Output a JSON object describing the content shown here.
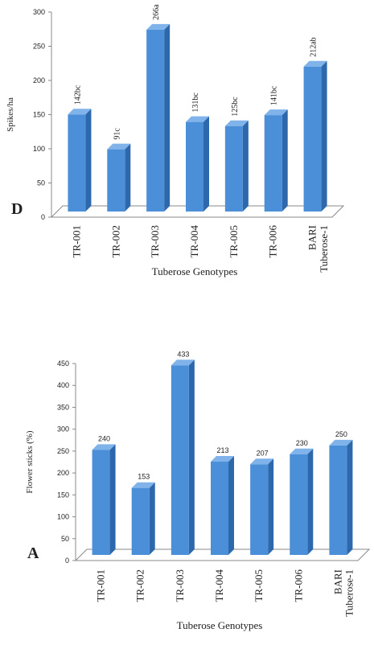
{
  "chart_data": [
    {
      "type": "bar",
      "panel_label": "D",
      "y_label": "Spikes/ha",
      "x_label": "Tuberose Genotypes",
      "categories": [
        "TR-001",
        "TR-002",
        "TR-003",
        "TR-004",
        "TR-005",
        "TR-006",
        "BARI Tuberose-1"
      ],
      "values": [
        142,
        91,
        266,
        131,
        125,
        141,
        212
      ],
      "value_labels": [
        "142bc",
        "91c",
        "266a",
        "131bc",
        "125bc",
        "141bc",
        "212ab"
      ],
      "color": "#4a8fd8",
      "ylim": [
        0,
        300
      ],
      "yticks": [
        0,
        50,
        100,
        150,
        200,
        250,
        300
      ]
    },
    {
      "type": "bar",
      "panel_label": "A",
      "y_label": "Flower sticks (%)",
      "x_label": "Tuberose Genotypes",
      "categories": [
        "TR-001",
        "TR-002",
        "TR-003",
        "TR-004",
        "TR-005",
        "TR-006",
        "BARI Tuberose-1"
      ],
      "values": [
        240,
        153,
        433,
        213,
        207,
        230,
        250
      ],
      "color": "#4a8fd8",
      "ylim": [
        0,
        450
      ],
      "yticks": [
        0,
        50,
        100,
        150,
        200,
        250,
        300,
        350,
        400,
        450
      ]
    }
  ]
}
